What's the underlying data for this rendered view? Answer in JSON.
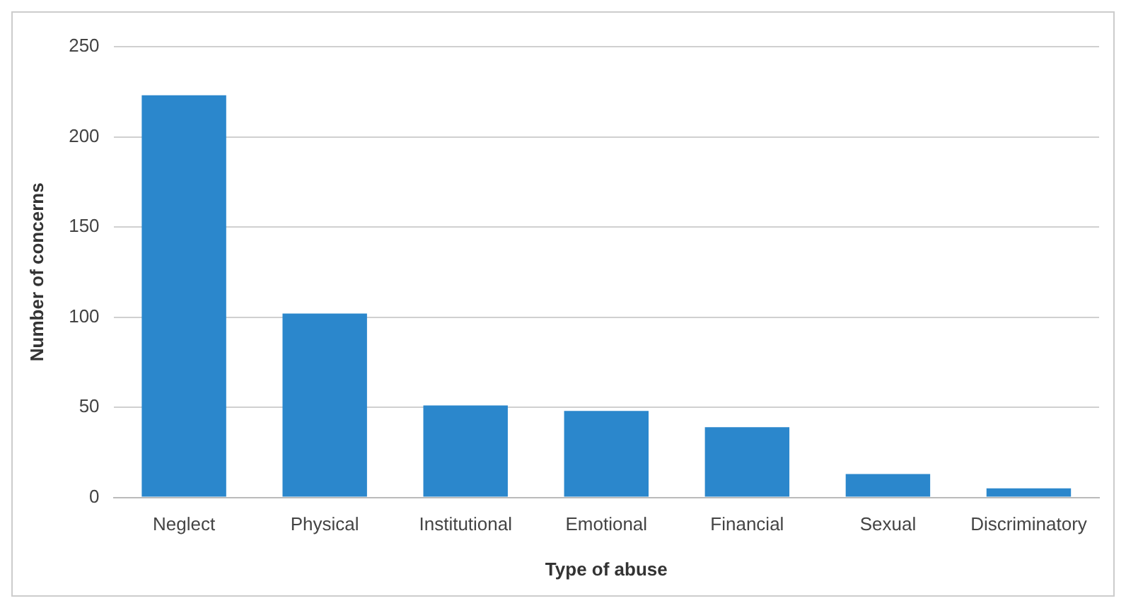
{
  "chart_data": {
    "type": "bar",
    "xlabel": "Type of abuse",
    "ylabel": "Number of concerns",
    "categories": [
      "Neglect",
      "Physical",
      "Institutional",
      "Emotional",
      "Financial",
      "Sexual",
      "Discriminatory"
    ],
    "values": [
      223,
      102,
      51,
      48,
      39,
      13,
      5
    ],
    "color": "#2b87cc",
    "ylim": [
      0,
      250
    ],
    "yticks": [
      0,
      50,
      100,
      150,
      200,
      250
    ],
    "grid": "y"
  }
}
